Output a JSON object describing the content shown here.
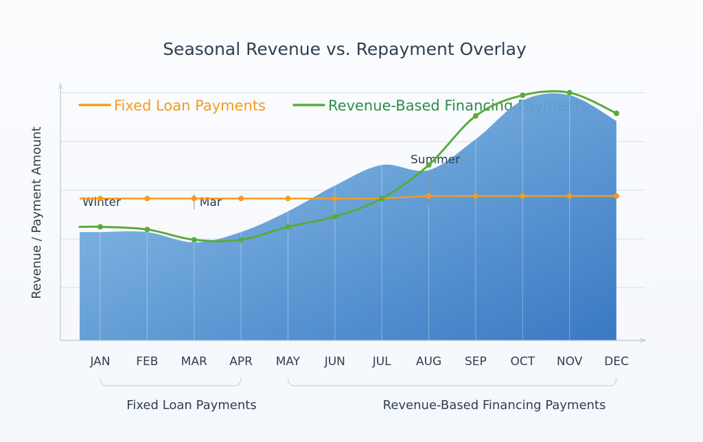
{
  "colors": {
    "fixed": "#f39b23",
    "rbf": "#5aaa3c",
    "rbf_text": "#2f8a4e",
    "revenue_top": "#8ec3ea",
    "revenue_bottom": "#2f72c0",
    "grid": "#d8e0ea",
    "axis": "#b9c7d8"
  },
  "chart_data": {
    "type": "area",
    "title": "Seasonal Revenue vs. Repayment Overlay",
    "ylabel": "Revenue / Payment Amount",
    "xlabel": "",
    "categories": [
      "JAN",
      "FEB",
      "MAR",
      "APR",
      "MAY",
      "JUN",
      "JUL",
      "AUG",
      "SEP",
      "OCT",
      "NOV",
      "DEC"
    ],
    "ylim": [
      0,
      100
    ],
    "grid": true,
    "legend_position": "top",
    "series": [
      {
        "name": "",
        "kind": "area",
        "values": [
          42,
          42,
          38,
          42,
          50,
          60,
          68,
          66,
          78,
          93,
          95,
          85
        ]
      },
      {
        "name": "Fixed Loan Payments",
        "kind": "line",
        "values": [
          55,
          55,
          55,
          55,
          55,
          55,
          55,
          56,
          56,
          56,
          56,
          56
        ]
      },
      {
        "name": "Revenue-Based Financing Payments",
        "kind": "line",
        "values": [
          44,
          43,
          39,
          39,
          44,
          48,
          55,
          68,
          87,
          95,
          96,
          88
        ]
      }
    ],
    "annotations": [
      {
        "text": "Winter",
        "category": "JAN"
      },
      {
        "text": "Mar",
        "category": "MAR"
      },
      {
        "text": "Summer",
        "category": "AUG"
      }
    ],
    "brackets": [
      {
        "label": "Fixed Loan Payments",
        "from": "JAN",
        "to": "APR"
      },
      {
        "label": "Revenue-Based Financing Payments",
        "from": "MAY",
        "to": "DEC"
      }
    ]
  }
}
